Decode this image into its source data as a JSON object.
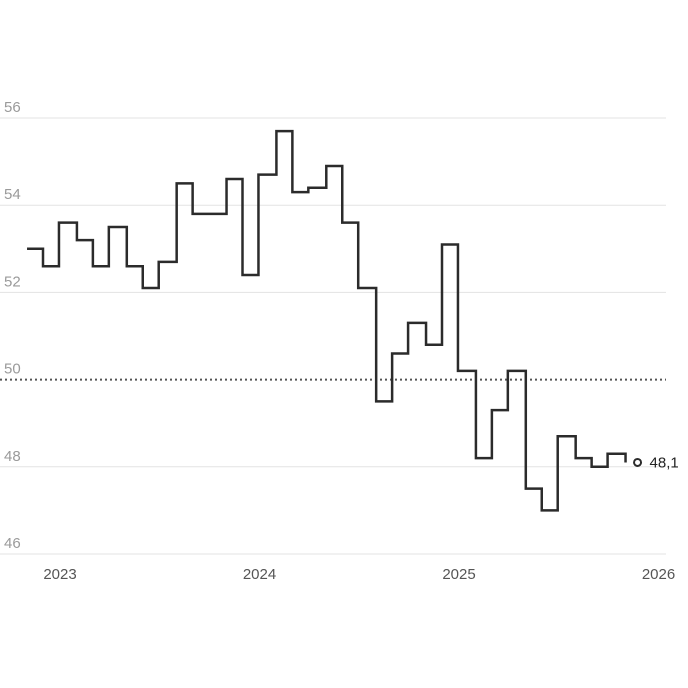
{
  "chart_data": {
    "type": "line",
    "step": true,
    "title": "",
    "xlabel": "",
    "ylabel": "",
    "ylim": [
      46,
      56
    ],
    "y_ticks": [
      46,
      48,
      50,
      52,
      54,
      56
    ],
    "y_tick_labels": [
      "46",
      "48",
      "50",
      "52",
      "54",
      "56"
    ],
    "x_ticks": [
      2023,
      2024,
      2025,
      2026
    ],
    "x_tick_labels": [
      "2023",
      "2024",
      "2025",
      "2026"
    ],
    "xlim": [
      2022.83,
      2026.1
    ],
    "reference_line": 50,
    "grid": true,
    "colors": {
      "line": "#2b2b2b",
      "grid": "#e3e3e3",
      "reference": "#555555"
    },
    "last_value_label": "48,1",
    "series": [
      {
        "x": [
          2022.92,
          2023.0,
          2023.08,
          2023.17,
          2023.25,
          2023.33,
          2023.42,
          2023.5,
          2023.58,
          2023.67,
          2023.75,
          2023.83,
          2023.92,
          2024.0,
          2024.08,
          2024.17,
          2024.25,
          2024.33,
          2024.42,
          2024.5,
          2024.58,
          2024.67,
          2024.75,
          2024.83,
          2024.92,
          2025.0,
          2025.08,
          2025.17,
          2025.25,
          2025.33,
          2025.42,
          2025.5,
          2025.58,
          2025.67,
          2025.75,
          2025.83,
          2025.92
        ],
        "values": [
          53.0,
          52.6,
          53.6,
          53.2,
          52.6,
          53.5,
          52.6,
          52.1,
          52.7,
          54.5,
          53.8,
          53.8,
          54.6,
          52.4,
          54.7,
          55.7,
          54.3,
          54.4,
          54.9,
          53.6,
          52.1,
          49.5,
          50.6,
          51.3,
          50.8,
          53.1,
          50.2,
          48.2,
          49.3,
          50.2,
          47.5,
          47.0,
          48.7,
          48.2,
          48.0,
          48.3,
          48.1
        ]
      }
    ]
  }
}
